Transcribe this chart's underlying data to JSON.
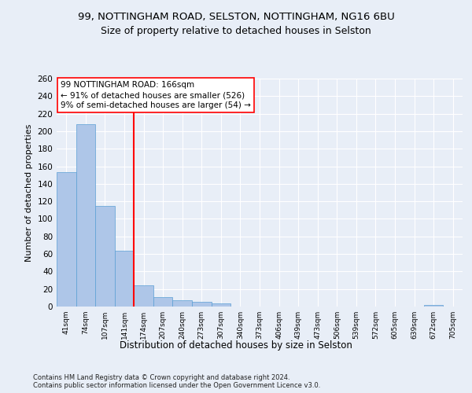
{
  "title1": "99, NOTTINGHAM ROAD, SELSTON, NOTTINGHAM, NG16 6BU",
  "title2": "Size of property relative to detached houses in Selston",
  "xlabel": "Distribution of detached houses by size in Selston",
  "ylabel": "Number of detached properties",
  "footnote": "Contains HM Land Registry data © Crown copyright and database right 2024.\nContains public sector information licensed under the Open Government Licence v3.0.",
  "bar_color": "#aec6e8",
  "bar_edge_color": "#5a9fd4",
  "annotation_line1": "99 NOTTINGHAM ROAD: 166sqm",
  "annotation_line2": "← 91% of detached houses are smaller (526)",
  "annotation_line3": "9% of semi-detached houses are larger (54) →",
  "vline_color": "red",
  "categories": [
    "41sqm",
    "74sqm",
    "107sqm",
    "141sqm",
    "174sqm",
    "207sqm",
    "240sqm",
    "273sqm",
    "307sqm",
    "340sqm",
    "373sqm",
    "406sqm",
    "439sqm",
    "473sqm",
    "506sqm",
    "539sqm",
    "572sqm",
    "605sqm",
    "639sqm",
    "672sqm",
    "705sqm"
  ],
  "values": [
    153,
    208,
    115,
    64,
    24,
    11,
    7,
    5,
    4,
    0,
    0,
    0,
    0,
    0,
    0,
    0,
    0,
    0,
    0,
    2,
    0
  ],
  "ylim": [
    0,
    260
  ],
  "yticks": [
    0,
    20,
    40,
    60,
    80,
    100,
    120,
    140,
    160,
    180,
    200,
    220,
    240,
    260
  ],
  "background_color": "#e8eef7",
  "grid_color": "#ffffff",
  "title1_fontsize": 9.5,
  "title2_fontsize": 9,
  "annotation_fontsize": 7.5,
  "ylabel_fontsize": 8,
  "xlabel_fontsize": 8.5,
  "footnote_fontsize": 6
}
